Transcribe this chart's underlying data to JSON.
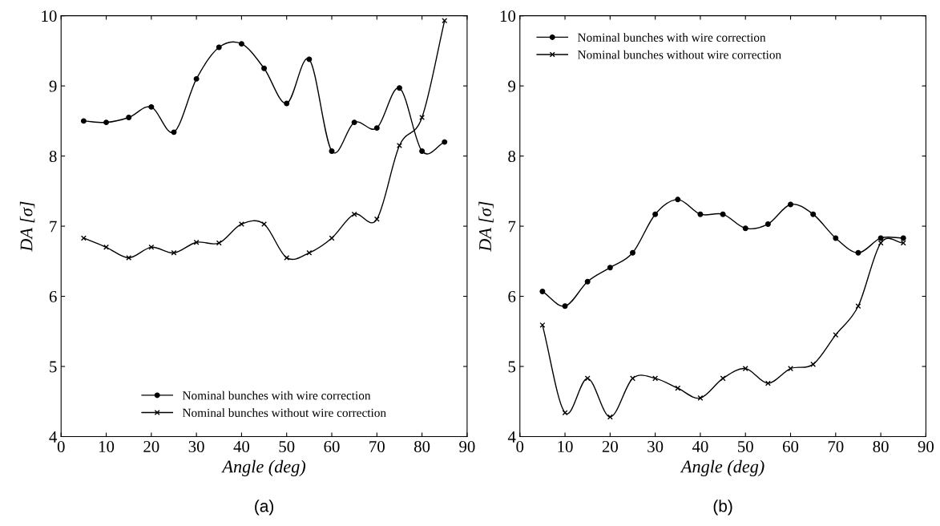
{
  "chart_data": [
    {
      "type": "line",
      "xlabel": "Angle (deg)",
      "ylabel": "DA [σ]",
      "annotations": [
        "(a)"
      ],
      "x": [
        5,
        10,
        15,
        20,
        25,
        30,
        35,
        40,
        45,
        50,
        55,
        60,
        65,
        70,
        75,
        80,
        85
      ],
      "xlim": [
        0,
        90
      ],
      "xticks": [
        0,
        10,
        20,
        30,
        40,
        50,
        60,
        70,
        80,
        90
      ],
      "ylim": [
        4,
        10
      ],
      "yticks": [
        4,
        5,
        6,
        7,
        8,
        9,
        10
      ],
      "legend": "bottom",
      "grid": false,
      "series": [
        {
          "name": "Nominal bunches with wire correction",
          "color": "#000000",
          "marker": "circle",
          "values": [
            8.5,
            8.48,
            8.55,
            8.7,
            8.34,
            9.1,
            9.55,
            9.6,
            9.25,
            8.75,
            9.38,
            8.07,
            8.48,
            8.4,
            8.97,
            8.07,
            8.2
          ]
        },
        {
          "name": "Nominal bunches without wire correction",
          "color": "#000000",
          "marker": "cross",
          "values": [
            6.83,
            6.7,
            6.55,
            6.7,
            6.62,
            6.77,
            6.76,
            7.03,
            7.03,
            6.55,
            6.62,
            6.83,
            7.17,
            7.1,
            8.15,
            8.55,
            9.93
          ]
        }
      ]
    },
    {
      "type": "line",
      "xlabel": "Angle (deg)",
      "ylabel": "DA [σ]",
      "annotations": [
        "(b)"
      ],
      "x": [
        5,
        10,
        15,
        20,
        25,
        30,
        35,
        40,
        45,
        50,
        55,
        60,
        65,
        70,
        75,
        80,
        85
      ],
      "xlim": [
        0,
        90
      ],
      "xticks": [
        0,
        10,
        20,
        30,
        40,
        50,
        60,
        70,
        80,
        90
      ],
      "ylim": [
        4,
        10
      ],
      "yticks": [
        4,
        5,
        6,
        7,
        8,
        9,
        10
      ],
      "legend": "top left",
      "grid": false,
      "series": [
        {
          "name": "Nominal bunches with wire correction",
          "color": "#000000",
          "marker": "circle",
          "values": [
            6.07,
            5.86,
            6.21,
            6.41,
            6.62,
            7.17,
            7.38,
            7.17,
            7.17,
            6.97,
            7.03,
            7.31,
            7.17,
            6.83,
            6.62,
            6.83,
            6.83
          ]
        },
        {
          "name": "Nominal bunches without wire correction",
          "color": "#000000",
          "marker": "cross",
          "values": [
            5.59,
            4.34,
            4.83,
            4.28,
            4.83,
            4.83,
            4.69,
            4.55,
            4.83,
            4.97,
            4.76,
            4.97,
            5.03,
            5.45,
            5.86,
            6.76,
            6.76
          ]
        }
      ]
    }
  ]
}
